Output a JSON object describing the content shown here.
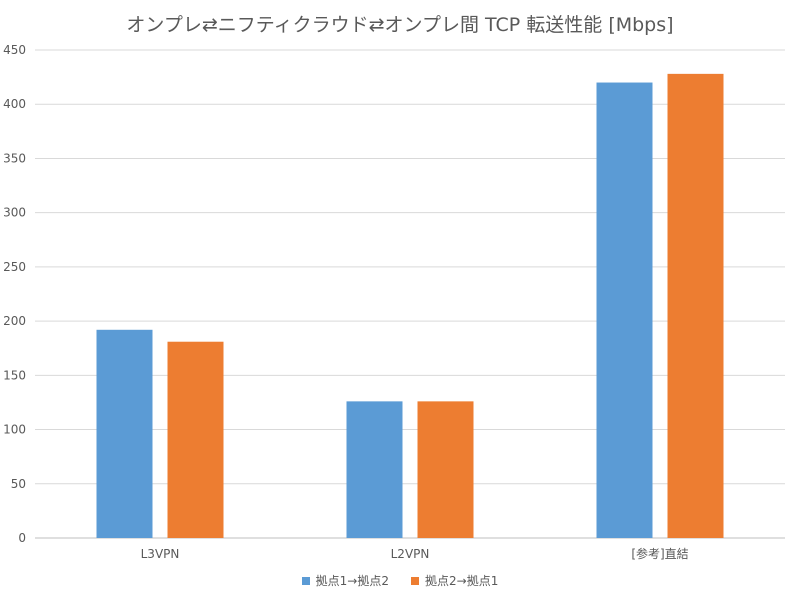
{
  "chart_data": {
    "type": "bar",
    "title": "オンプレ⇄ニフティクラウド⇄オンプレ間 TCP 転送性能 [Mbps]",
    "categories": [
      "L3VPN",
      "L2VPN",
      "[参考]直結"
    ],
    "series": [
      {
        "name": "拠点1→拠点2",
        "color": "#5B9BD5",
        "values": [
          192,
          126,
          420
        ]
      },
      {
        "name": "拠点2→拠点1",
        "color": "#ED7D31",
        "values": [
          181,
          126,
          428
        ]
      }
    ],
    "ylim": [
      0,
      450
    ],
    "yticks": [
      0,
      50,
      100,
      150,
      200,
      250,
      300,
      350,
      400,
      450
    ],
    "grid": true,
    "legend_position": "bottom",
    "xlabel": "",
    "ylabel": ""
  }
}
